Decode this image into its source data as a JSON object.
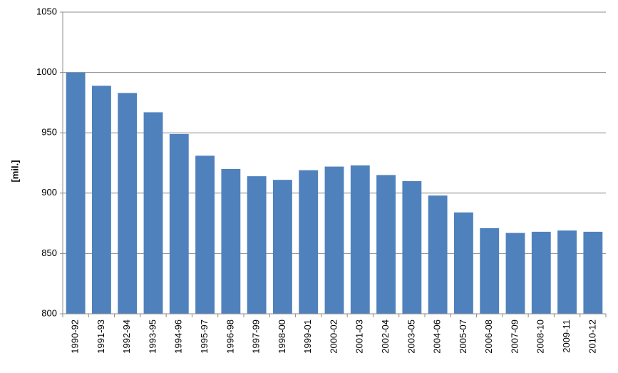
{
  "chart_data": {
    "type": "bar",
    "y_label": "[mil.]",
    "categories": [
      "1990-92",
      "1991-93",
      "1992-94",
      "1993-95",
      "1994-96",
      "1995-97",
      "1996-98",
      "1997-99",
      "1998-00",
      "1999-01",
      "2000-02",
      "2001-03",
      "2002-04",
      "2003-05",
      "2004-06",
      "2005-07",
      "2006-08",
      "2007-09",
      "2008-10",
      "2009-11",
      "2010-12"
    ],
    "values": [
      1000,
      989,
      983,
      967,
      949,
      931,
      920,
      914,
      911,
      919,
      922,
      923,
      915,
      910,
      898,
      884,
      871,
      867,
      868,
      869,
      868
    ],
    "color": "#4f81bd",
    "ylim": [
      800,
      1050
    ],
    "yticks": [
      800,
      850,
      900,
      950,
      1000,
      1050
    ],
    "grid": true
  }
}
